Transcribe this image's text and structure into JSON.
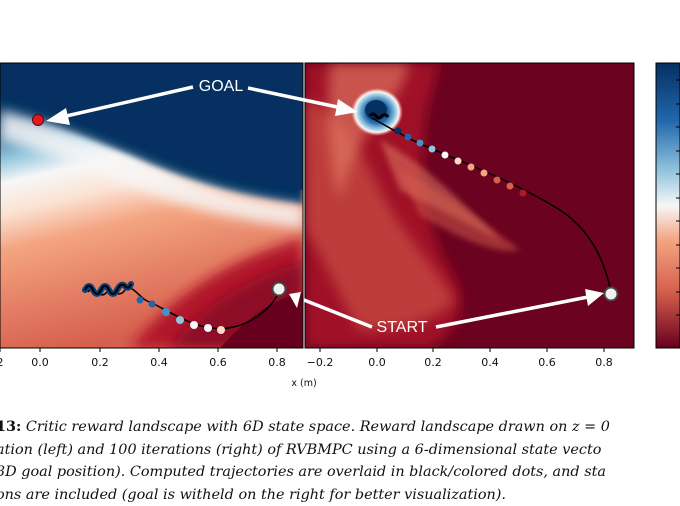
{
  "figure": {
    "annotations": {
      "goal": "GOAL",
      "start": "START"
    },
    "xlabel": "x (m)",
    "left_ticks": [
      "2",
      "0.0",
      "0.2",
      "0.4",
      "0.6",
      "0.8"
    ],
    "right_ticks": [
      "−0.2",
      "0.0",
      "0.2",
      "0.4",
      "0.6",
      "0.8"
    ],
    "colors": {
      "blue": "#053061",
      "red": "#67001f",
      "white": "#f7f7f7"
    }
  },
  "caption": {
    "label": "13:",
    "line1": " Critic reward landscape with 6D state space. Reward landscape drawn on z = 0",
    "line2": "ation (left) and 100 iterations (right) of RVBMPC using a 6-dimensional state vecto",
    "line3": " 3D goal position). Computed trajectories are overlaid in black/colored dots, and sta",
    "line4": "ons are included (goal is witheld on the right for better visualization)."
  }
}
